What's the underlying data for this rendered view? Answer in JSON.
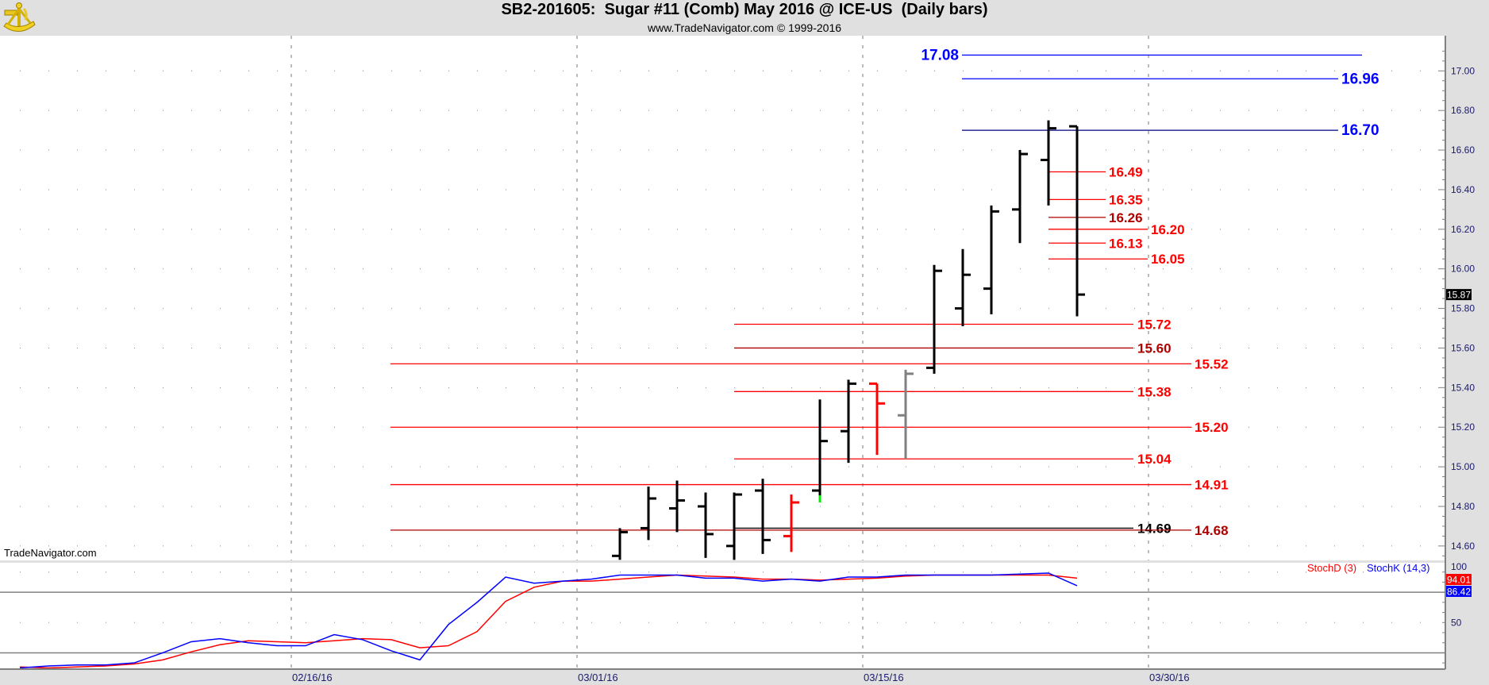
{
  "header": {
    "title": "SB2-201605:  Sugar #11 (Comb) May 2016 @ ICE-US  (Daily bars)",
    "subtitle": "www.TradeNavigator.com © 1999-2016",
    "logo_icon": "sextant-icon"
  },
  "watermark": "TradeNavigator.com",
  "chart_data": [
    {
      "type": "ohlc",
      "ylim": [
        14.53,
        17.18
      ],
      "yticks": [
        "14.60",
        "14.80",
        "15.00",
        "15.20",
        "15.40",
        "15.60",
        "15.80",
        "16.00",
        "16.20",
        "16.40",
        "16.60",
        "16.80",
        "17.00"
      ],
      "grid": true,
      "last_price": "15.87",
      "dates": [
        "03/02/16",
        "03/03/16",
        "03/04/16",
        "03/07/16",
        "03/08/16",
        "03/09/16",
        "03/10/16",
        "03/11/16",
        "03/14/16",
        "03/15/16",
        "03/16/16",
        "03/17/16",
        "03/18/16",
        "03/21/16",
        "03/22/16",
        "03/23/16",
        "03/24/16"
      ],
      "open": [
        14.55,
        14.69,
        14.79,
        14.8,
        14.6,
        14.88,
        14.65,
        14.88,
        15.18,
        15.42,
        15.26,
        15.5,
        15.8,
        15.9,
        16.3,
        16.55,
        16.72
      ],
      "high": [
        14.69,
        14.9,
        14.93,
        14.87,
        14.87,
        14.94,
        14.86,
        15.34,
        15.44,
        15.42,
        15.49,
        16.02,
        16.1,
        16.32,
        16.6,
        16.75,
        16.72
      ],
      "low": [
        14.53,
        14.63,
        14.67,
        14.54,
        14.53,
        14.56,
        14.57,
        14.82,
        15.02,
        15.06,
        15.04,
        15.47,
        15.71,
        15.77,
        16.13,
        16.32,
        15.76
      ],
      "close": [
        14.67,
        14.84,
        14.83,
        14.66,
        14.86,
        14.63,
        14.82,
        15.13,
        15.42,
        15.32,
        15.47,
        15.99,
        15.97,
        16.29,
        16.58,
        16.71,
        15.87
      ],
      "bar_colors": [
        "#000000",
        "#000000",
        "#000000",
        "#000000",
        "#000000",
        "#000000",
        "#ff0000",
        "#000000",
        "#000000",
        "#ff0000",
        "#808080",
        "#000000",
        "#000000",
        "#000000",
        "#000000",
        "#000000",
        "#000000"
      ],
      "low_marker_color": {
        "index": 7,
        "color": "#00ee00"
      },
      "levels": [
        {
          "value": 17.08,
          "label": "17.08",
          "color": "#0000ff",
          "group": "blue-top"
        },
        {
          "value": 16.96,
          "label": "16.96",
          "color": "#0000ff",
          "group": "blue"
        },
        {
          "value": 16.7,
          "label": "16.70",
          "color": "#0000ff",
          "group": "blue",
          "line_color": "#000080"
        },
        {
          "value": 16.49,
          "label": "16.49",
          "color": "#ff0000",
          "group": "near"
        },
        {
          "value": 16.35,
          "label": "16.35",
          "color": "#ff0000",
          "group": "near"
        },
        {
          "value": 16.26,
          "label": "16.26",
          "color": "#b00000",
          "group": "near"
        },
        {
          "value": 16.2,
          "label": "16.20",
          "color": "#ff0000",
          "group": "near"
        },
        {
          "value": 16.13,
          "label": "16.13",
          "color": "#ff0000",
          "group": "near"
        },
        {
          "value": 16.05,
          "label": "16.05",
          "color": "#ff0000",
          "group": "near"
        },
        {
          "value": 15.72,
          "label": "15.72",
          "color": "#ff0000",
          "group": "mid"
        },
        {
          "value": 15.6,
          "label": "15.60",
          "color": "#b00000",
          "group": "mid"
        },
        {
          "value": 15.52,
          "label": "15.52",
          "color": "#ff0000",
          "group": "far"
        },
        {
          "value": 15.38,
          "label": "15.38",
          "color": "#ff0000",
          "group": "mid"
        },
        {
          "value": 15.2,
          "label": "15.20",
          "color": "#ff0000",
          "group": "far"
        },
        {
          "value": 15.04,
          "label": "15.04",
          "color": "#ff0000",
          "group": "mid"
        },
        {
          "value": 14.91,
          "label": "14.91",
          "color": "#ff0000",
          "group": "far"
        },
        {
          "value": 14.69,
          "label": "14.69",
          "color": "#000000",
          "group": "mid"
        },
        {
          "value": 14.68,
          "label": "14.68",
          "color": "#b00000",
          "group": "far"
        }
      ]
    },
    {
      "type": "line",
      "ylim": [
        0,
        100
      ],
      "yticks": [
        "100",
        "50"
      ],
      "hlines": [
        80,
        20
      ],
      "dates": [
        "02/01/16",
        "02/02/16",
        "02/03/16",
        "02/04/16",
        "02/05/16",
        "02/08/16",
        "02/09/16",
        "02/10/16",
        "02/11/16",
        "02/12/16",
        "02/16/16",
        "02/17/16",
        "02/18/16",
        "02/19/16",
        "02/22/16",
        "02/23/16",
        "02/24/16",
        "02/25/16",
        "02/26/16",
        "02/29/16",
        "03/01/16",
        "03/02/16",
        "03/03/16",
        "03/04/16",
        "03/07/16",
        "03/08/16",
        "03/09/16",
        "03/10/16",
        "03/11/16",
        "03/14/16",
        "03/15/16",
        "03/16/16",
        "03/17/16",
        "03/18/16",
        "03/21/16",
        "03/22/16",
        "03/23/16",
        "03/24/16"
      ],
      "series": [
        {
          "name": "StochD (3)",
          "color": "#ff0000",
          "last_label": "94.01",
          "values": [
            6,
            5,
            6,
            7,
            9,
            13,
            21,
            28,
            32,
            31,
            30,
            32,
            34,
            33,
            25,
            27,
            41,
            71,
            85,
            91,
            91,
            93,
            95,
            97,
            96,
            95,
            93,
            93,
            92,
            93,
            94,
            96,
            97,
            97,
            97,
            97,
            97,
            94.01
          ]
        },
        {
          "name": "StochK (14,3)",
          "color": "#0000ff",
          "last_label": "86.42",
          "values": [
            5,
            7,
            8,
            8,
            10,
            20,
            31,
            34,
            30,
            27,
            27,
            38,
            33,
            22,
            13,
            48,
            70,
            95,
            89,
            91,
            93,
            97,
            97,
            97,
            94,
            94,
            91,
            93,
            91,
            95,
            95,
            97,
            97,
            97,
            97,
            98,
            99,
            86.42
          ]
        }
      ]
    }
  ],
  "x_axis": {
    "labels": [
      "02/16/16",
      "03/01/16",
      "03/15/16",
      "03/30/16"
    ]
  }
}
